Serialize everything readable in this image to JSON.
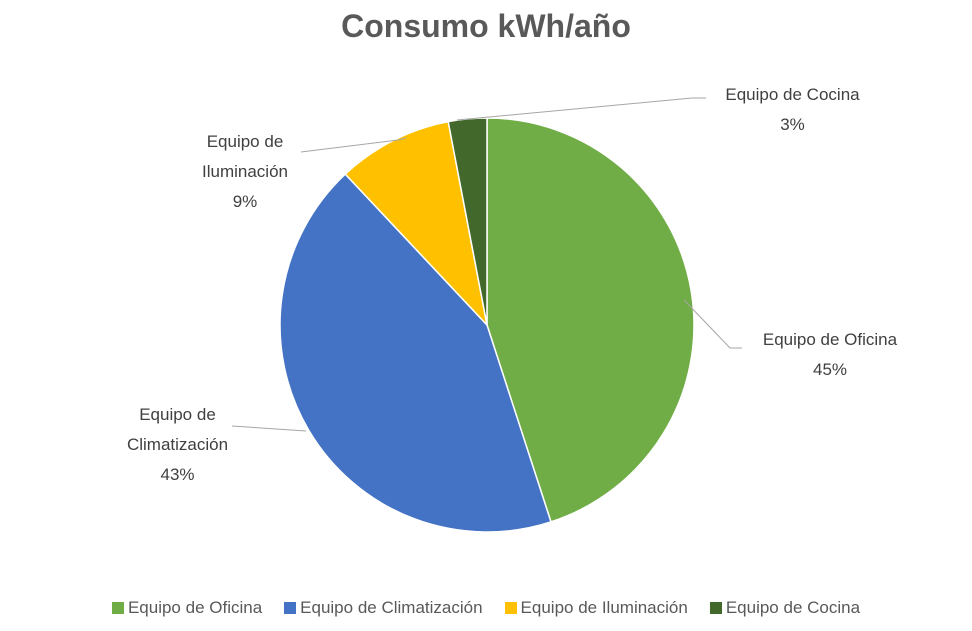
{
  "chart_data": {
    "type": "pie",
    "title": "Consumo kWh/año",
    "categories": [
      "Equipo de Oficina",
      "Equipo de Climatización",
      "Equipo de Iluminación",
      "Equipo de Cocina"
    ],
    "values": [
      45,
      43,
      9,
      3
    ],
    "value_labels": [
      "45%",
      "43%",
      "9%",
      "3%"
    ],
    "colors": [
      "#70ad47",
      "#4472c4",
      "#ffc000",
      "#43682b"
    ],
    "legend": "bottom"
  }
}
